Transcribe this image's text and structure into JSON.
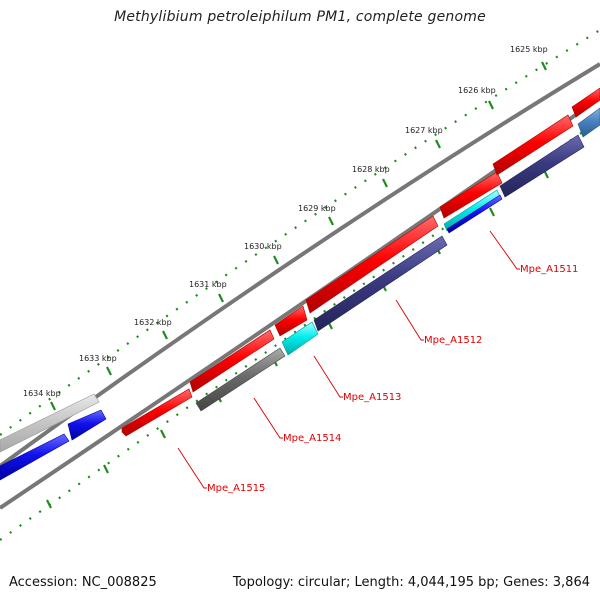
{
  "title": "Methylibium petroleiphilum PM1, complete genome",
  "accession_text": "Accession: NC_008825",
  "info_text": "Topology: circular; Length: 4,044,195 bp; Genes: 3,864",
  "ticks": [
    "1625 kbp",
    "1626 kbp",
    "1627 kbp",
    "1628 kbp",
    "1629 kbp",
    "1630 kbp",
    "1631 kbp",
    "1632 kbp",
    "1633 kbp",
    "1634 kbp"
  ],
  "gene_labels": [
    "Mpe_A1511",
    "Mpe_A1512",
    "Mpe_A1513",
    "Mpe_A1514",
    "Mpe_A1515"
  ],
  "colors": {
    "forward_gene": "#ff0000",
    "reverse_gene": "#3a3a80",
    "tick_green": "#1f8a1f",
    "backbone": "#777777",
    "cyan_gene": "#00eeee",
    "blue_gene": "#1111ee",
    "light_gray_gene": "#c8c8c8",
    "dark_gray_gene": "#6a6a6a",
    "steel_blue_gene": "#4a82c0",
    "label_red": "#dd0000"
  }
}
